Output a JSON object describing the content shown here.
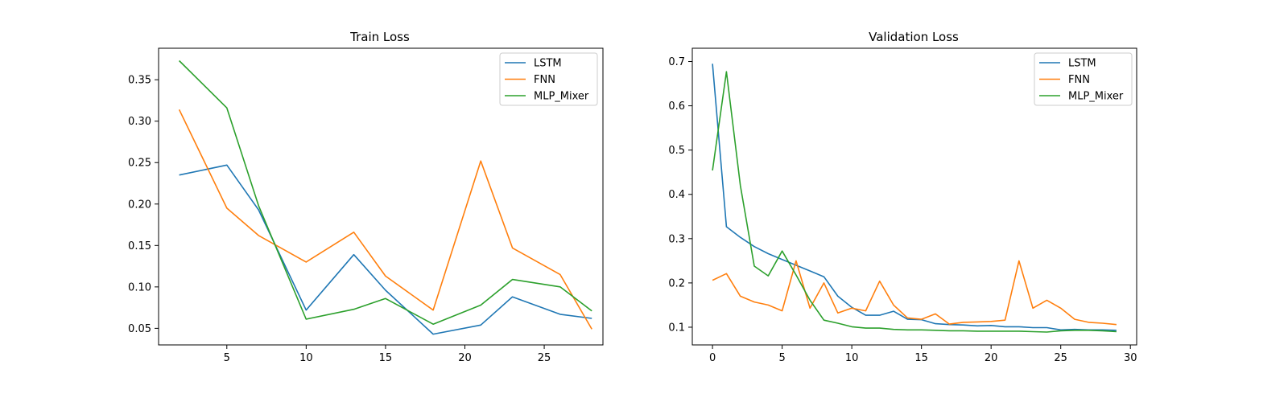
{
  "chart_data": [
    {
      "type": "line",
      "title": "Train Loss",
      "xlabel": "",
      "ylabel": "",
      "xlim": [
        0.7,
        28.7
      ],
      "ylim": [
        0.03,
        0.388
      ],
      "xticks": [
        5,
        10,
        15,
        20,
        25
      ],
      "yticks": [
        0.05,
        0.1,
        0.15,
        0.2,
        0.25,
        0.3,
        0.35
      ],
      "ytick_labels": [
        "0.05",
        "0.10",
        "0.15",
        "0.20",
        "0.25",
        "0.30",
        "0.35"
      ],
      "grid": false,
      "legend_position": "top-right",
      "series": [
        {
          "name": "LSTM",
          "color": "#1f77b4",
          "x": [
            2,
            5,
            7,
            10,
            13,
            15,
            18,
            21,
            23,
            26,
            28
          ],
          "y": [
            0.235,
            0.247,
            0.193,
            0.072,
            0.139,
            0.096,
            0.043,
            0.054,
            0.088,
            0.067,
            0.062
          ]
        },
        {
          "name": "FNN",
          "color": "#ff7f0e",
          "x": [
            2,
            5,
            7,
            10,
            13,
            15,
            18,
            21,
            23,
            26,
            28
          ],
          "y": [
            0.314,
            0.195,
            0.162,
            0.13,
            0.166,
            0.113,
            0.072,
            0.252,
            0.147,
            0.115,
            0.049
          ]
        },
        {
          "name": "MLP_Mixer",
          "color": "#2ca02c",
          "x": [
            2,
            5,
            7,
            10,
            13,
            15,
            18,
            21,
            23,
            26,
            28
          ],
          "y": [
            0.373,
            0.316,
            0.198,
            0.061,
            0.073,
            0.086,
            0.055,
            0.078,
            0.109,
            0.1,
            0.071
          ]
        }
      ]
    },
    {
      "type": "line",
      "title": "Validation Loss",
      "xlabel": "",
      "ylabel": "",
      "xlim": [
        -1.45,
        30.45
      ],
      "ylim": [
        0.06,
        0.73
      ],
      "xticks": [
        0,
        5,
        10,
        15,
        20,
        25,
        30
      ],
      "yticks": [
        0.1,
        0.2,
        0.3,
        0.4,
        0.5,
        0.6,
        0.7
      ],
      "ytick_labels": [
        "0.1",
        "0.2",
        "0.3",
        "0.4",
        "0.5",
        "0.6",
        "0.7"
      ],
      "grid": false,
      "legend_position": "top-right",
      "series": [
        {
          "name": "LSTM",
          "color": "#1f77b4",
          "x": [
            0,
            1,
            2,
            3,
            4,
            5,
            6,
            7,
            8,
            9,
            10,
            11,
            12,
            13,
            14,
            15,
            16,
            17,
            18,
            19,
            20,
            21,
            22,
            23,
            24,
            25,
            26,
            27,
            28,
            29
          ],
          "y": [
            0.695,
            0.327,
            0.303,
            0.282,
            0.266,
            0.253,
            0.24,
            0.227,
            0.214,
            0.17,
            0.145,
            0.127,
            0.127,
            0.136,
            0.118,
            0.117,
            0.108,
            0.106,
            0.105,
            0.103,
            0.104,
            0.101,
            0.101,
            0.099,
            0.099,
            0.094,
            0.095,
            0.094,
            0.094,
            0.093
          ]
        },
        {
          "name": "FNN",
          "color": "#ff7f0e",
          "x": [
            0,
            1,
            2,
            3,
            4,
            5,
            6,
            7,
            8,
            9,
            10,
            11,
            12,
            13,
            14,
            15,
            16,
            17,
            18,
            19,
            20,
            21,
            22,
            23,
            24,
            25,
            26,
            27,
            28,
            29
          ],
          "y": [
            0.206,
            0.221,
            0.17,
            0.157,
            0.15,
            0.137,
            0.25,
            0.143,
            0.2,
            0.132,
            0.143,
            0.137,
            0.204,
            0.15,
            0.121,
            0.118,
            0.13,
            0.107,
            0.111,
            0.112,
            0.113,
            0.116,
            0.25,
            0.143,
            0.161,
            0.143,
            0.118,
            0.111,
            0.109,
            0.106
          ]
        },
        {
          "name": "MLP_Mixer",
          "color": "#2ca02c",
          "x": [
            0,
            1,
            2,
            3,
            4,
            5,
            6,
            7,
            8,
            9,
            10,
            11,
            12,
            13,
            14,
            15,
            16,
            17,
            18,
            19,
            20,
            21,
            22,
            23,
            24,
            25,
            26,
            27,
            28,
            29
          ],
          "y": [
            0.454,
            0.677,
            0.42,
            0.238,
            0.216,
            0.272,
            0.218,
            0.161,
            0.116,
            0.109,
            0.101,
            0.098,
            0.098,
            0.095,
            0.094,
            0.094,
            0.093,
            0.092,
            0.092,
            0.091,
            0.091,
            0.091,
            0.091,
            0.09,
            0.089,
            0.092,
            0.093,
            0.093,
            0.092,
            0.09
          ]
        }
      ]
    }
  ]
}
